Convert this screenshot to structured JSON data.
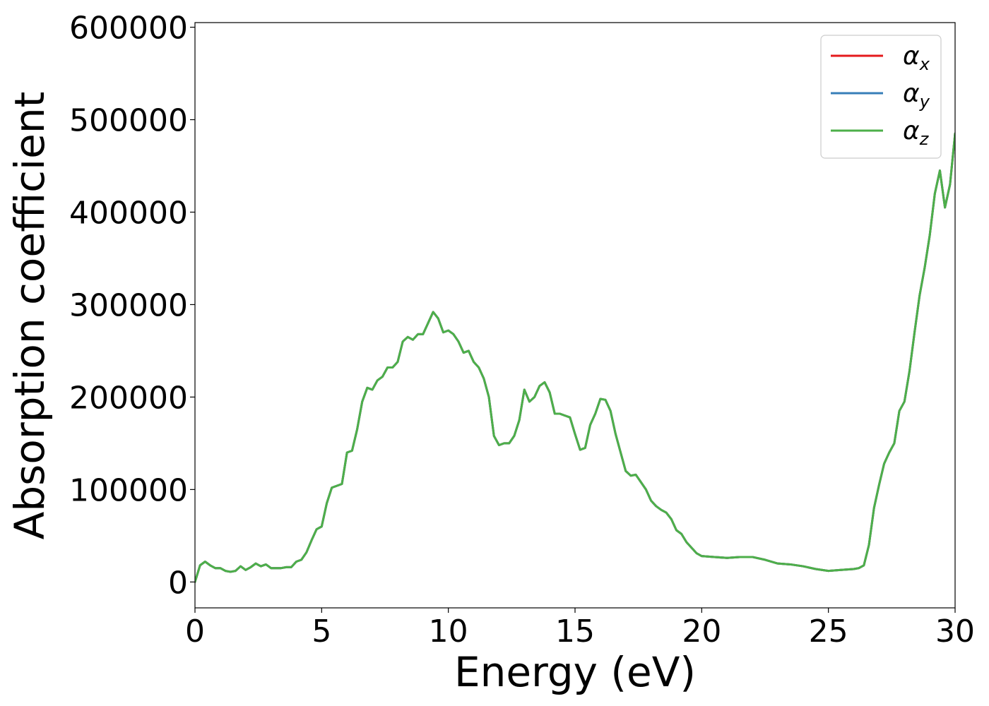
{
  "chart_data": {
    "type": "line",
    "title": "",
    "xlabel": "Energy (eV)",
    "ylabel": "Absorption coefficient",
    "xlim": [
      0,
      30
    ],
    "ylim": [
      -28000,
      605000
    ],
    "xticks": [
      0,
      5,
      10,
      15,
      20,
      25,
      30
    ],
    "yticks": [
      0,
      100000,
      200000,
      300000,
      400000,
      500000,
      600000
    ],
    "xtick_labels": [
      "0",
      "5",
      "10",
      "15",
      "20",
      "25",
      "30"
    ],
    "ytick_labels": [
      "0",
      "100000",
      "200000",
      "300000",
      "400000",
      "500000",
      "600000"
    ],
    "grid": false,
    "legend_position": "top-right",
    "x": [
      0,
      0.2,
      0.4,
      0.6,
      0.8,
      1.0,
      1.2,
      1.4,
      1.6,
      1.8,
      2.0,
      2.2,
      2.4,
      2.6,
      2.8,
      3.0,
      3.2,
      3.4,
      3.6,
      3.8,
      4.0,
      4.2,
      4.4,
      4.6,
      4.8,
      5.0,
      5.2,
      5.4,
      5.6,
      5.8,
      6.0,
      6.2,
      6.4,
      6.6,
      6.8,
      7.0,
      7.2,
      7.4,
      7.6,
      7.8,
      8.0,
      8.2,
      8.4,
      8.6,
      8.8,
      9.0,
      9.2,
      9.4,
      9.6,
      9.8,
      10.0,
      10.2,
      10.4,
      10.6,
      10.8,
      11.0,
      11.2,
      11.4,
      11.6,
      11.8,
      12.0,
      12.2,
      12.4,
      12.6,
      12.8,
      13.0,
      13.2,
      13.4,
      13.6,
      13.8,
      14.0,
      14.2,
      14.4,
      14.6,
      14.8,
      15.0,
      15.2,
      15.4,
      15.6,
      15.8,
      16.0,
      16.2,
      16.4,
      16.6,
      16.8,
      17.0,
      17.2,
      17.4,
      17.6,
      17.8,
      18.0,
      18.2,
      18.4,
      18.6,
      18.8,
      19.0,
      19.2,
      19.4,
      19.6,
      19.8,
      20.0,
      20.5,
      21.0,
      21.5,
      22.0,
      22.5,
      23.0,
      23.5,
      24.0,
      24.5,
      25.0,
      25.5,
      26.0,
      26.2,
      26.4,
      26.6,
      26.8,
      27.0,
      27.2,
      27.4,
      27.6,
      27.8,
      28.0,
      28.2,
      28.4,
      28.6,
      28.8,
      29.0,
      29.2,
      29.4,
      29.6,
      29.8,
      30.0
    ],
    "series": [
      {
        "name": "αx",
        "label_base": "α",
        "label_sub": "x",
        "color": "#e41a1c",
        "values": [
          0,
          18000,
          22000,
          18000,
          15000,
          15000,
          12000,
          11000,
          12000,
          17000,
          13000,
          16000,
          20000,
          17000,
          19000,
          15000,
          15000,
          15000,
          16000,
          16000,
          22000,
          24000,
          32000,
          45000,
          57000,
          60000,
          85000,
          102000,
          104000,
          106000,
          140000,
          142000,
          165000,
          195000,
          210000,
          208000,
          218000,
          222000,
          232000,
          232000,
          238000,
          260000,
          265000,
          262000,
          268000,
          268000,
          280000,
          292000,
          285000,
          270000,
          272000,
          268000,
          260000,
          248000,
          250000,
          238000,
          232000,
          220000,
          200000,
          158000,
          148000,
          150000,
          150000,
          158000,
          175000,
          208000,
          195000,
          200000,
          212000,
          216000,
          205000,
          182000,
          182000,
          180000,
          178000,
          160000,
          143000,
          145000,
          170000,
          182000,
          198000,
          197000,
          185000,
          160000,
          140000,
          120000,
          115000,
          116000,
          108000,
          100000,
          88000,
          82000,
          78000,
          75000,
          68000,
          56000,
          52000,
          43000,
          37000,
          31000,
          28000,
          27000,
          26000,
          27000,
          27000,
          24000,
          20000,
          19000,
          17000,
          14000,
          12000,
          13000,
          14000,
          15000,
          18000,
          40000,
          80000,
          105000,
          128000,
          140000,
          150000,
          185000,
          195000,
          228000,
          270000,
          310000,
          340000,
          375000,
          420000,
          445000,
          405000,
          430000,
          485000
        ]
      },
      {
        "name": "αy",
        "label_base": "α",
        "label_sub": "y",
        "color": "#377eb8",
        "values": [
          0,
          18000,
          22000,
          18000,
          15000,
          15000,
          12000,
          11000,
          12000,
          17000,
          13000,
          16000,
          20000,
          17000,
          19000,
          15000,
          15000,
          15000,
          16000,
          16000,
          22000,
          24000,
          32000,
          45000,
          57000,
          60000,
          85000,
          102000,
          104000,
          106000,
          140000,
          142000,
          165000,
          195000,
          210000,
          208000,
          218000,
          222000,
          232000,
          232000,
          238000,
          260000,
          265000,
          262000,
          268000,
          268000,
          280000,
          292000,
          285000,
          270000,
          272000,
          268000,
          260000,
          248000,
          250000,
          238000,
          232000,
          220000,
          200000,
          158000,
          148000,
          150000,
          150000,
          158000,
          175000,
          208000,
          195000,
          200000,
          212000,
          216000,
          205000,
          182000,
          182000,
          180000,
          178000,
          160000,
          143000,
          145000,
          170000,
          182000,
          198000,
          197000,
          185000,
          160000,
          140000,
          120000,
          115000,
          116000,
          108000,
          100000,
          88000,
          82000,
          78000,
          75000,
          68000,
          56000,
          52000,
          43000,
          37000,
          31000,
          28000,
          27000,
          26000,
          27000,
          27000,
          24000,
          20000,
          19000,
          17000,
          14000,
          12000,
          13000,
          14000,
          15000,
          18000,
          40000,
          80000,
          105000,
          128000,
          140000,
          150000,
          185000,
          195000,
          228000,
          270000,
          310000,
          340000,
          375000,
          420000,
          445000,
          405000,
          430000,
          485000
        ]
      },
      {
        "name": "αz",
        "label_base": "α",
        "label_sub": "z",
        "color": "#4daf4a",
        "values": [
          0,
          18000,
          22000,
          18000,
          15000,
          15000,
          12000,
          11000,
          12000,
          17000,
          13000,
          16000,
          20000,
          17000,
          19000,
          15000,
          15000,
          15000,
          16000,
          16000,
          22000,
          24000,
          32000,
          45000,
          57000,
          60000,
          85000,
          102000,
          104000,
          106000,
          140000,
          142000,
          165000,
          195000,
          210000,
          208000,
          218000,
          222000,
          232000,
          232000,
          238000,
          260000,
          265000,
          262000,
          268000,
          268000,
          280000,
          292000,
          285000,
          270000,
          272000,
          268000,
          260000,
          248000,
          250000,
          238000,
          232000,
          220000,
          200000,
          158000,
          148000,
          150000,
          150000,
          158000,
          175000,
          208000,
          195000,
          200000,
          212000,
          216000,
          205000,
          182000,
          182000,
          180000,
          178000,
          160000,
          143000,
          145000,
          170000,
          182000,
          198000,
          197000,
          185000,
          160000,
          140000,
          120000,
          115000,
          116000,
          108000,
          100000,
          88000,
          82000,
          78000,
          75000,
          68000,
          56000,
          52000,
          43000,
          37000,
          31000,
          28000,
          27000,
          26000,
          27000,
          27000,
          24000,
          20000,
          19000,
          17000,
          14000,
          12000,
          13000,
          14000,
          15000,
          18000,
          40000,
          80000,
          105000,
          128000,
          140000,
          150000,
          185000,
          195000,
          228000,
          270000,
          310000,
          340000,
          375000,
          420000,
          445000,
          405000,
          430000,
          485000
        ]
      }
    ]
  }
}
